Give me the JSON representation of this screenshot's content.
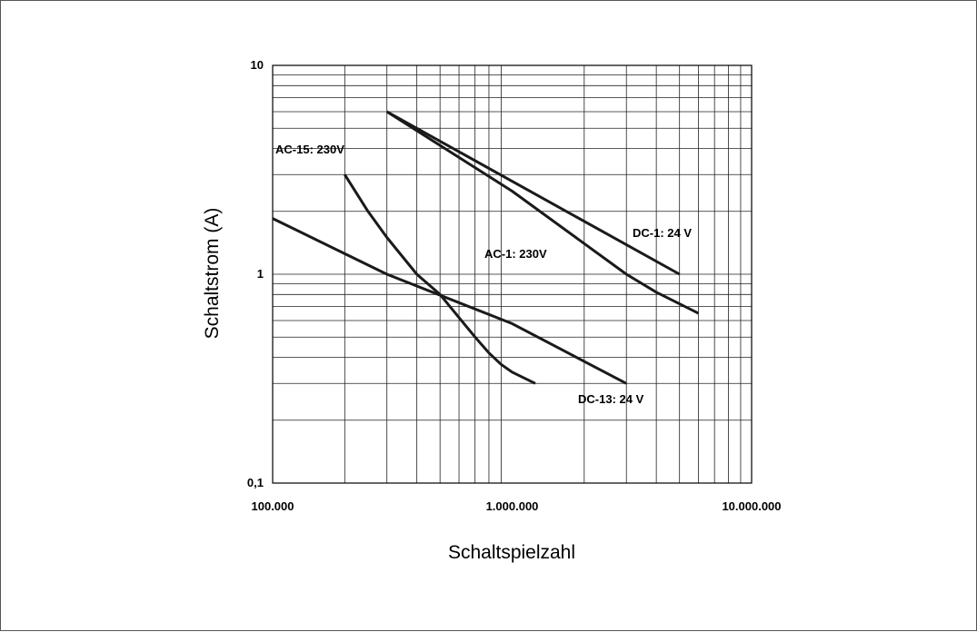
{
  "chart_data": {
    "type": "line",
    "title": "",
    "xlabel": "Schaltspielzahl",
    "ylabel": "Schaltstrom (A)",
    "x_scale": "log",
    "y_scale": "log",
    "xlim": [
      100000,
      10000000
    ],
    "ylim": [
      0.1,
      10
    ],
    "grid": true,
    "x_ticks": [
      {
        "value": 100000,
        "label": "100.000"
      },
      {
        "value": 1000000,
        "label": "1.000.000"
      },
      {
        "value": 10000000,
        "label": "10.000.000"
      }
    ],
    "y_ticks": [
      {
        "value": 10,
        "label": "10"
      },
      {
        "value": 1,
        "label": "1"
      },
      {
        "value": 0.1,
        "label": "0,1"
      }
    ],
    "series": [
      {
        "name": "DC-1: 24 V",
        "x": [
          300000,
          5000000
        ],
        "y": [
          6,
          1
        ]
      },
      {
        "name": "AC-1: 230V",
        "x": [
          300000,
          1000000,
          3000000,
          4000000,
          6000000
        ],
        "y": [
          6,
          2.5,
          1.0,
          0.82,
          0.65
        ]
      },
      {
        "name": "AC-15: 230V",
        "x": [
          200000,
          250000,
          300000,
          400000,
          500000,
          600000,
          700000,
          800000,
          900000,
          1000000,
          1250000
        ],
        "y": [
          3,
          2,
          1.5,
          1.0,
          0.8,
          0.62,
          0.5,
          0.42,
          0.37,
          0.34,
          0.3
        ]
      },
      {
        "name": "DC-13: 24 V",
        "x": [
          100000,
          300000,
          1000000,
          3000000
        ],
        "y": [
          1.85,
          1.0,
          0.58,
          0.3
        ]
      }
    ]
  }
}
